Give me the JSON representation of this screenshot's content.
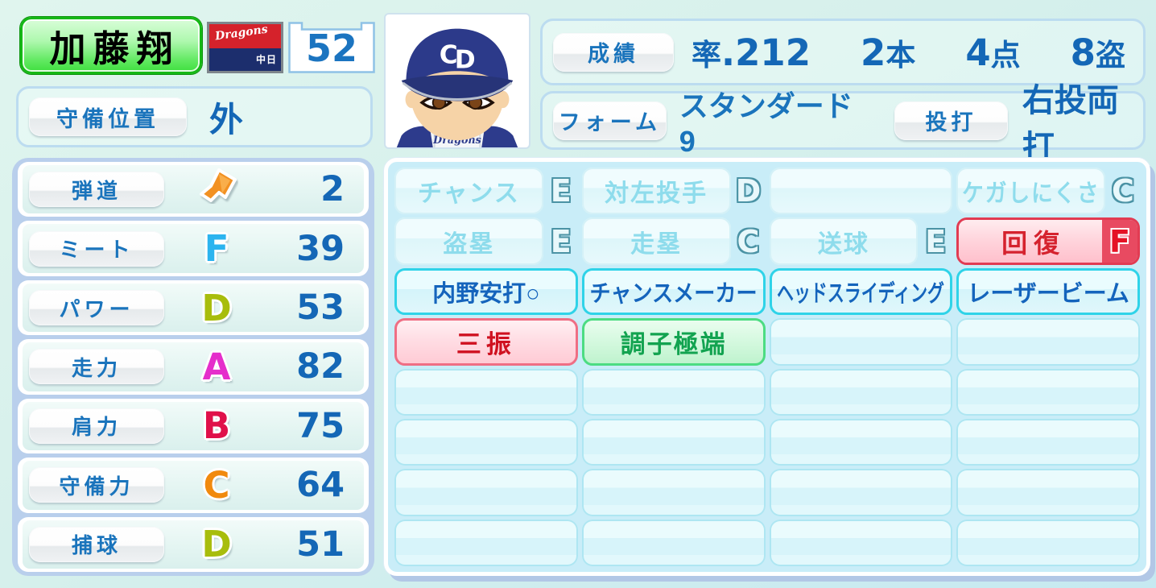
{
  "player": {
    "name": "加藤翔",
    "jersey_number": "52",
    "team_flag": {
      "script_name": "Dragons",
      "kanji_name": "中日"
    },
    "position": {
      "label": "守備位置",
      "value": "外"
    }
  },
  "record": {
    "label": "成績",
    "avg_label": "率",
    "avg_value": ".212",
    "hr_value": "2",
    "hr_suffix": "本",
    "rbi_value": "4",
    "rbi_suffix": "点",
    "sb_value": "8",
    "sb_suffix": "盗"
  },
  "form": {
    "label": "フォーム",
    "value": "スタンダード9",
    "throwbat_label": "投打",
    "throwbat_value": "右投両打"
  },
  "stats": [
    {
      "label": "弾道",
      "icon": "trajectory-arrow-icon",
      "grade": "",
      "value": "2"
    },
    {
      "label": "ミート",
      "grade": "F",
      "value": "39"
    },
    {
      "label": "パワー",
      "grade": "D",
      "value": "53"
    },
    {
      "label": "走力",
      "grade": "A",
      "value": "82"
    },
    {
      "label": "肩力",
      "grade": "B",
      "value": "75"
    },
    {
      "label": "守備力",
      "grade": "C",
      "value": "64"
    },
    {
      "label": "捕球",
      "grade": "D",
      "value": "51"
    }
  ],
  "grade_colors": {
    "A": "#e52ecb",
    "B": "#e0104a",
    "C": "#f18a0e",
    "D": "#a8bd0c",
    "F": "#2cb4ef"
  },
  "abilities_rows": [
    [
      {
        "type": "muted",
        "label": "チャンス",
        "grade": "E"
      },
      {
        "type": "muted",
        "label": "対左投手",
        "grade": "D"
      },
      {
        "type": "muted_blank",
        "label": "",
        "grade": ""
      },
      {
        "type": "muted",
        "label": "ケガしにくさ",
        "grade": "C"
      }
    ],
    [
      {
        "type": "muted",
        "label": "盗塁",
        "grade": "E"
      },
      {
        "type": "muted",
        "label": "走塁",
        "grade": "C"
      },
      {
        "type": "muted",
        "label": "送球",
        "grade": "E"
      },
      {
        "type": "recovery",
        "label": "回復",
        "grade": "F"
      }
    ],
    [
      {
        "type": "blue",
        "label": "内野安打○"
      },
      {
        "type": "blue",
        "label": "チャンスメーカー"
      },
      {
        "type": "blue",
        "label": "ヘッドスライディング"
      },
      {
        "type": "blue",
        "label": "レーザービーム"
      }
    ],
    [
      {
        "type": "red",
        "label": "三振"
      },
      {
        "type": "green",
        "label": "調子極端"
      },
      {
        "type": "empty"
      },
      {
        "type": "empty"
      }
    ],
    [
      {
        "type": "empty"
      },
      {
        "type": "empty"
      },
      {
        "type": "empty"
      },
      {
        "type": "empty"
      }
    ],
    [
      {
        "type": "empty"
      },
      {
        "type": "empty"
      },
      {
        "type": "empty"
      },
      {
        "type": "empty"
      }
    ],
    [
      {
        "type": "empty"
      },
      {
        "type": "empty"
      },
      {
        "type": "empty"
      },
      {
        "type": "empty"
      }
    ],
    [
      {
        "type": "empty"
      },
      {
        "type": "empty"
      },
      {
        "type": "empty"
      },
      {
        "type": "empty"
      }
    ]
  ]
}
